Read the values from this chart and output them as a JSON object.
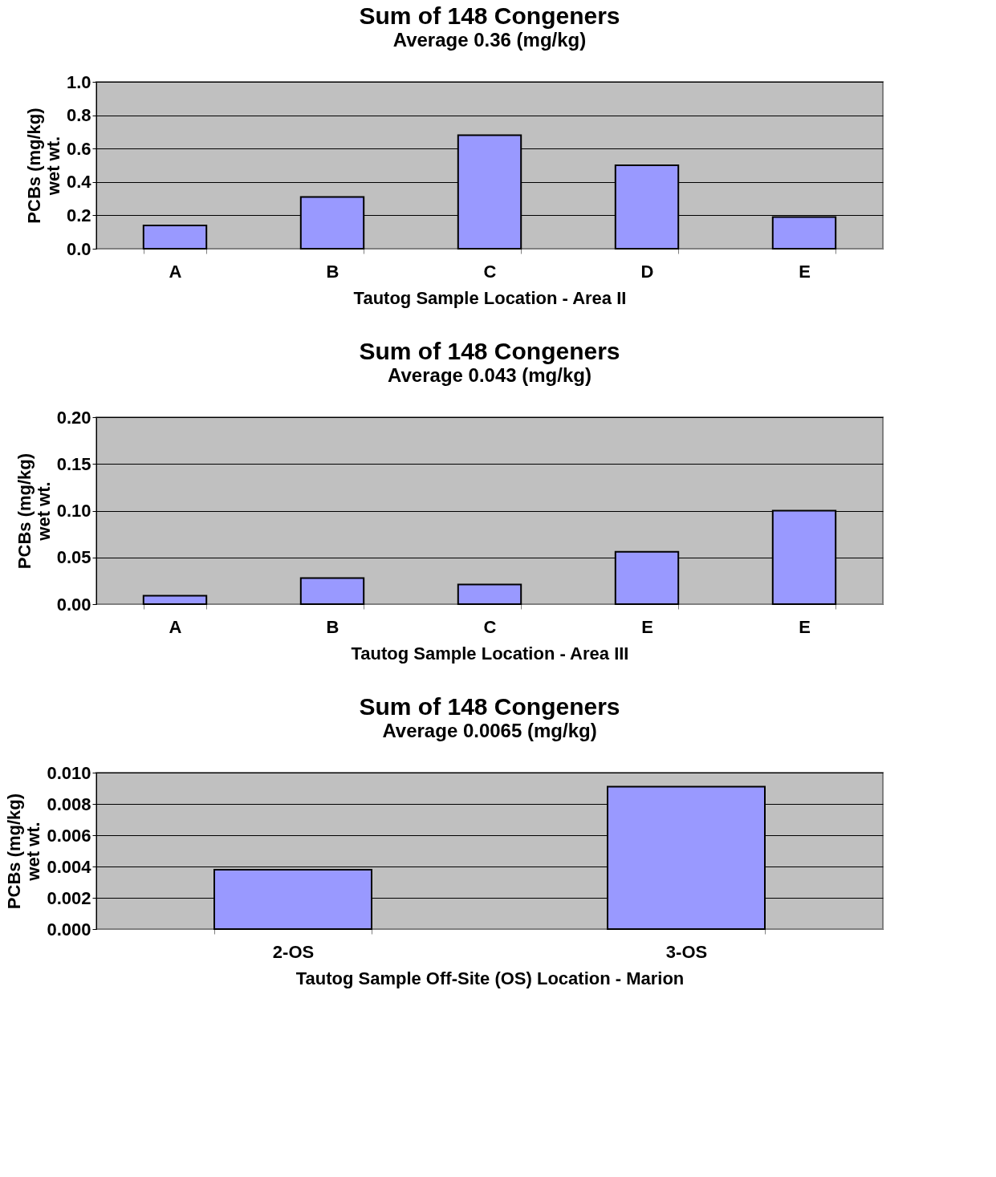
{
  "chart_data": [
    {
      "type": "bar",
      "title": "Sum of 148 Congeners",
      "subtitle": "Average 0.36 (mg/kg)",
      "xlabel": "Tautog Sample Location - Area II",
      "ylabel": "PCBs (mg/kg)\nwet wt.",
      "categories": [
        "A",
        "B",
        "C",
        "D",
        "E"
      ],
      "series": [
        {
          "color": "#9999ff",
          "values": [
            0.14,
            0.31,
            0.68,
            0.5,
            0.19
          ]
        }
      ],
      "ylim": [
        0,
        1.0
      ],
      "yticks": [
        {
          "value": 0,
          "label": "0.0"
        },
        0.2,
        0.4,
        0.6,
        0.8,
        {
          "value": 1.0,
          "label": "1.0"
        }
      ],
      "grid": "y"
    },
    {
      "type": "bar",
      "title": "Sum of 148 Congeners",
      "subtitle": "Average 0.043 (mg/kg)",
      "xlabel": "Tautog Sample Location - Area III",
      "ylabel": "PCBs (mg/kg)\nwet wt.",
      "categories": [
        "A",
        "B",
        "C",
        "E",
        "E"
      ],
      "series": [
        {
          "color": "#9999ff",
          "values": [
            0.009,
            0.028,
            0.021,
            0.056,
            0.1
          ]
        }
      ],
      "ylim": [
        0,
        0.2
      ],
      "yticks": [
        {
          "value": 0,
          "label": "0.00"
        },
        0.05,
        {
          "value": 0.1,
          "label": "0.10"
        },
        0.15,
        {
          "value": 0.2,
          "label": "0.20"
        }
      ],
      "grid": "y"
    },
    {
      "type": "bar",
      "title": "Sum of 148 Congeners",
      "subtitle": "Average 0.0065 (mg/kg)",
      "xlabel": "Tautog Sample Off-Site (OS) Location - Marion",
      "ylabel": "PCBs (mg/kg)\nwet wt.",
      "categories": [
        "2-OS",
        "3-OS"
      ],
      "series": [
        {
          "color": "#9999ff",
          "values": [
            0.0038,
            0.0091
          ]
        }
      ],
      "ylim": [
        0,
        0.01
      ],
      "yticks": [
        {
          "value": 0,
          "label": "0.000"
        },
        {
          "value": 0.002,
          "label": "0.002"
        },
        {
          "value": 0.004,
          "label": "0.004"
        },
        {
          "value": 0.006,
          "label": "0.006"
        },
        {
          "value": 0.008,
          "label": "0.008"
        },
        {
          "value": 0.01,
          "label": "0.010"
        }
      ],
      "grid": "y"
    }
  ]
}
